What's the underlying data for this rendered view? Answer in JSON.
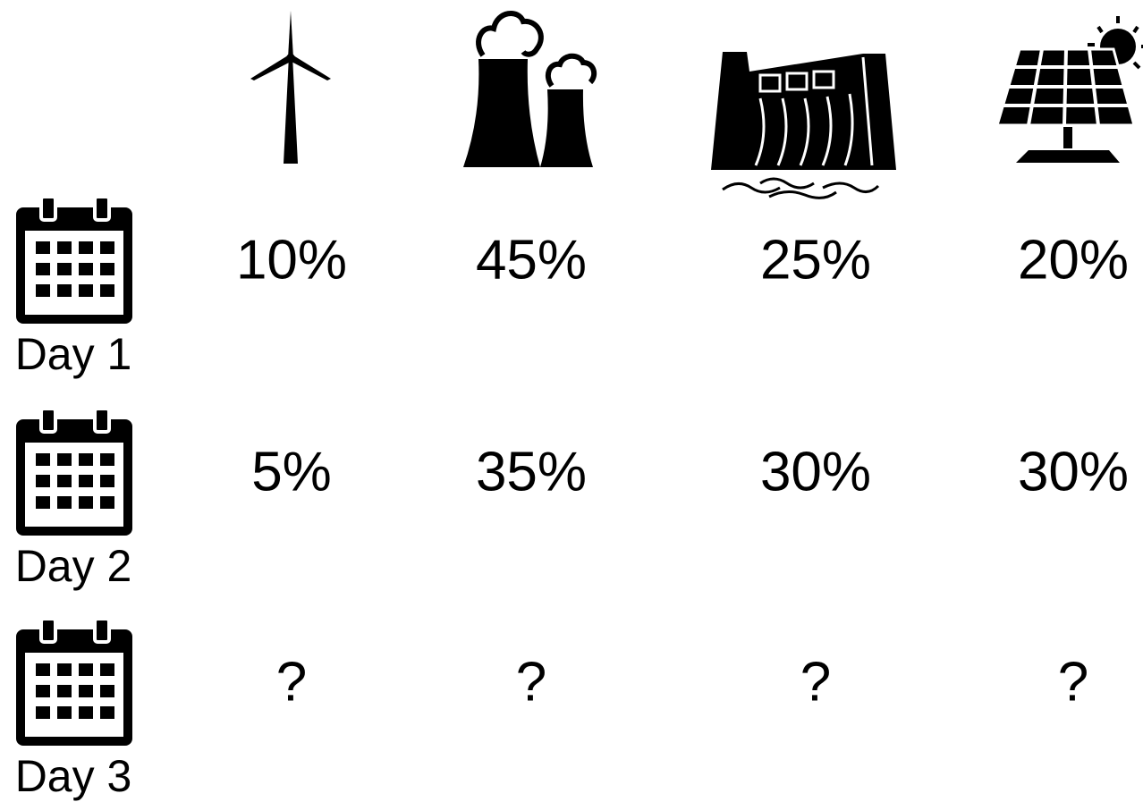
{
  "rows": [
    {
      "label": "Day 1",
      "cells": [
        "10%",
        "45%",
        "25%",
        "20%"
      ]
    },
    {
      "label": "Day 2",
      "cells": [
        "5%",
        "35%",
        "30%",
        "30%"
      ]
    },
    {
      "label": "Day 3",
      "cells": [
        "?",
        "?",
        "?",
        "?"
      ]
    }
  ]
}
